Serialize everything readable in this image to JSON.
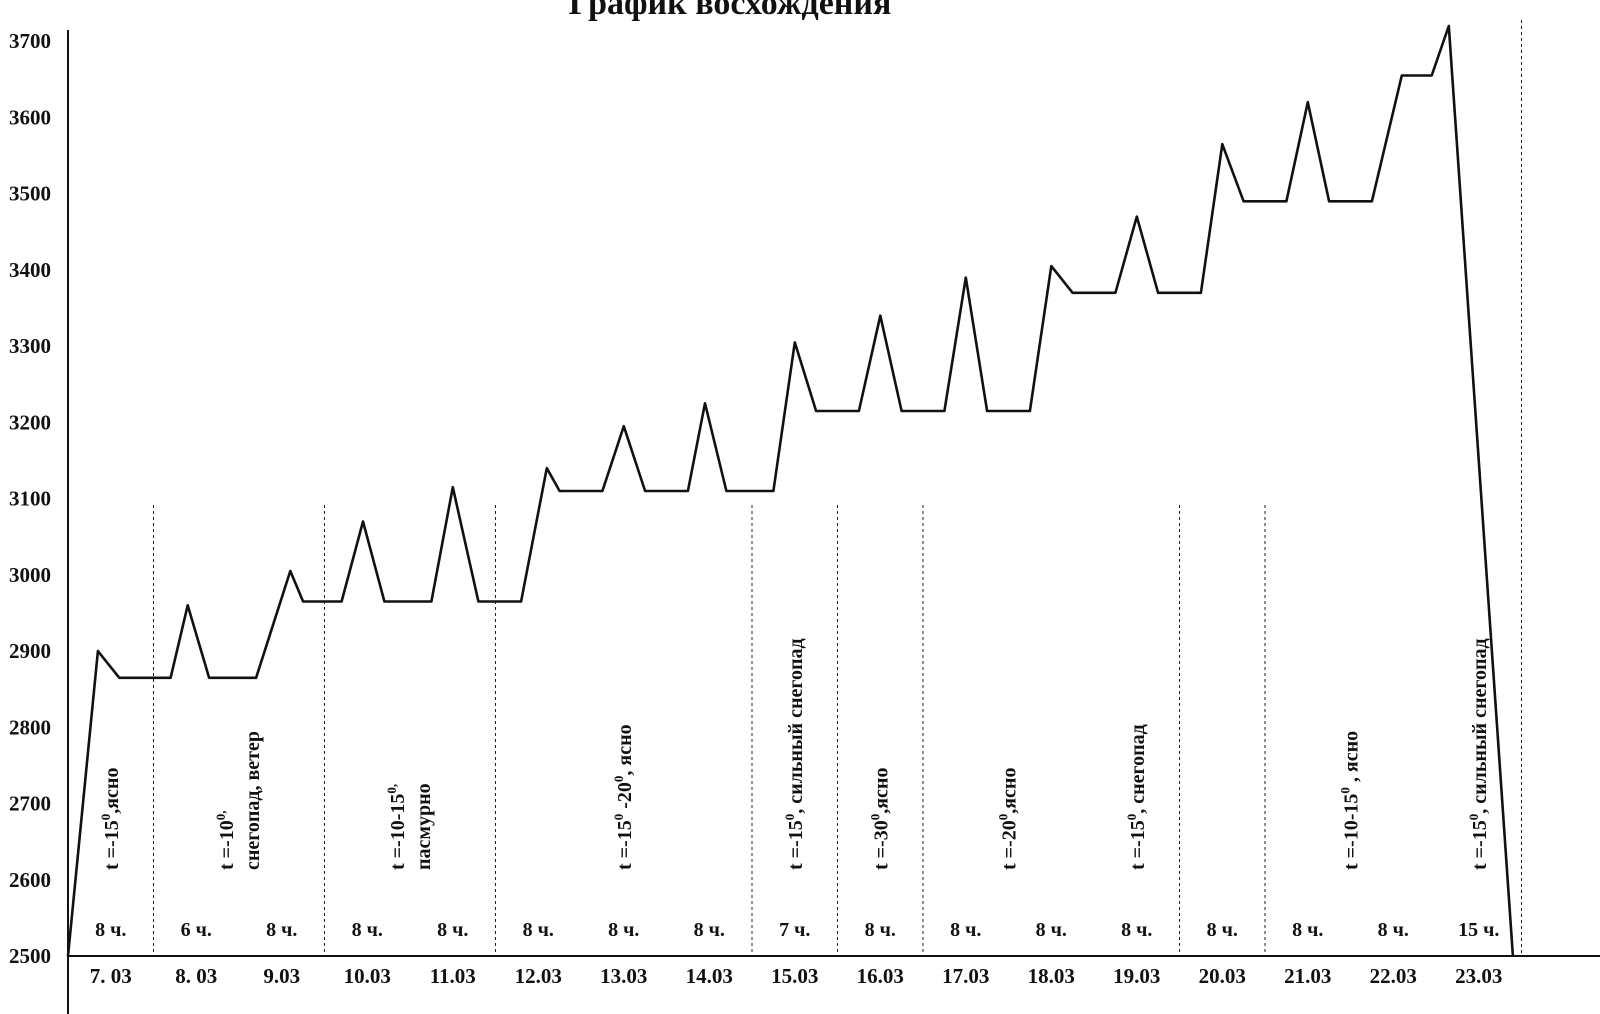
{
  "chart_data": {
    "type": "line",
    "title": "График восхождения",
    "ylim": [
      2500,
      3720
    ],
    "y_ticks": [
      2500,
      2600,
      2700,
      2800,
      2900,
      3000,
      3100,
      3200,
      3300,
      3400,
      3500,
      3600,
      3700
    ],
    "day_labels": [
      "7. 03",
      "8. 03",
      "9.03",
      "10.03",
      "11.03",
      "12.03",
      "13.03",
      "14.03",
      "15.03",
      "16.03",
      "17.03",
      "18.03",
      "19.03",
      "20.03",
      "21.03",
      "22.03",
      "23.03"
    ],
    "hours": [
      {
        "day": 0,
        "text": "8 ч."
      },
      {
        "day": 1,
        "text": "6 ч."
      },
      {
        "day": 2,
        "text": "8 ч."
      },
      {
        "day": 3,
        "text": "8 ч."
      },
      {
        "day": 4,
        "text": "8 ч."
      },
      {
        "day": 5,
        "text": "8 ч."
      },
      {
        "day": 6,
        "text": "8 ч."
      },
      {
        "day": 7,
        "text": "8 ч."
      },
      {
        "day": 8,
        "text": "7 ч."
      },
      {
        "day": 9,
        "text": "8 ч."
      },
      {
        "day": 10,
        "text": "8 ч."
      },
      {
        "day": 11,
        "text": "8 ч."
      },
      {
        "day": 12,
        "text": "8 ч."
      },
      {
        "day": 13,
        "text": "8 ч."
      },
      {
        "day": 14,
        "text": "8 ч."
      },
      {
        "day": 15,
        "text": "8 ч."
      },
      {
        "day": 16,
        "text": "15 ч."
      }
    ],
    "separators_after_day": [
      0,
      2,
      4,
      7,
      8,
      9,
      12,
      13,
      16
    ],
    "weather": [
      {
        "day": 0.5,
        "lines": [
          [
            {
              "t": "t =-15"
            },
            {
              "t": "0",
              "sup": true
            },
            {
              "t": ",ясно"
            }
          ]
        ]
      },
      {
        "day": 2.0,
        "lines": [
          [
            {
              "t": "t =-10"
            },
            {
              "t": "0,",
              "sup": true
            }
          ],
          [
            {
              "t": "снегопад, ветер"
            }
          ]
        ]
      },
      {
        "day": 4.0,
        "lines": [
          [
            {
              "t": "t =-10-15"
            },
            {
              "t": "0,",
              "sup": true
            }
          ],
          [
            {
              "t": "пасмурно"
            }
          ]
        ]
      },
      {
        "day": 6.5,
        "lines": [
          [
            {
              "t": "t =-15"
            },
            {
              "t": "0",
              "sup": true
            },
            {
              "t": " -20"
            },
            {
              "t": "0",
              "sup": true
            },
            {
              "t": ", ясно"
            }
          ]
        ]
      },
      {
        "day": 8.5,
        "lines": [
          [
            {
              "t": "t =-15"
            },
            {
              "t": "0",
              "sup": true
            },
            {
              "t": ", сильный снегопад"
            }
          ]
        ]
      },
      {
        "day": 9.5,
        "lines": [
          [
            {
              "t": "t =-30"
            },
            {
              "t": "0",
              "sup": true
            },
            {
              "t": ",ясно"
            }
          ]
        ]
      },
      {
        "day": 11.0,
        "lines": [
          [
            {
              "t": "t =-20"
            },
            {
              "t": "0",
              "sup": true
            },
            {
              "t": ",ясно"
            }
          ]
        ]
      },
      {
        "day": 12.5,
        "lines": [
          [
            {
              "t": "t =-15"
            },
            {
              "t": "0",
              "sup": true
            },
            {
              "t": ", снегопад"
            }
          ]
        ]
      },
      {
        "day": 15.0,
        "lines": [
          [
            {
              "t": "t =-10-15"
            },
            {
              "t": "0",
              "sup": true
            },
            {
              "t": " , ясно"
            }
          ]
        ]
      },
      {
        "day": 16.5,
        "lines": [
          [
            {
              "t": "t =-15"
            },
            {
              "t": "0",
              "sup": true
            },
            {
              "t": ", сильный снегопад"
            }
          ]
        ]
      }
    ],
    "series": [
      {
        "values": [
          [
            0.0,
            2500
          ],
          [
            0.35,
            2900
          ],
          [
            0.6,
            2865
          ],
          [
            1.2,
            2865
          ],
          [
            1.4,
            2960
          ],
          [
            1.65,
            2865
          ],
          [
            2.2,
            2865
          ],
          [
            2.6,
            3005
          ],
          [
            2.75,
            2965
          ],
          [
            3.2,
            2965
          ],
          [
            3.45,
            3070
          ],
          [
            3.7,
            2965
          ],
          [
            4.25,
            2965
          ],
          [
            4.5,
            3115
          ],
          [
            4.8,
            2965
          ],
          [
            5.3,
            2965
          ],
          [
            5.6,
            3140
          ],
          [
            5.75,
            3110
          ],
          [
            6.25,
            3110
          ],
          [
            6.5,
            3195
          ],
          [
            6.75,
            3110
          ],
          [
            7.25,
            3110
          ],
          [
            7.45,
            3225
          ],
          [
            7.7,
            3110
          ],
          [
            8.25,
            3110
          ],
          [
            8.5,
            3305
          ],
          [
            8.75,
            3215
          ],
          [
            9.25,
            3215
          ],
          [
            9.5,
            3340
          ],
          [
            9.75,
            3215
          ],
          [
            10.25,
            3215
          ],
          [
            10.5,
            3390
          ],
          [
            10.75,
            3215
          ],
          [
            11.25,
            3215
          ],
          [
            11.5,
            3405
          ],
          [
            11.75,
            3370
          ],
          [
            12.25,
            3370
          ],
          [
            12.5,
            3470
          ],
          [
            12.75,
            3370
          ],
          [
            13.25,
            3370
          ],
          [
            13.5,
            3565
          ],
          [
            13.75,
            3490
          ],
          [
            14.25,
            3490
          ],
          [
            14.5,
            3620
          ],
          [
            14.75,
            3490
          ],
          [
            15.25,
            3490
          ],
          [
            15.6,
            3655
          ],
          [
            15.95,
            3655
          ],
          [
            16.15,
            3720
          ],
          [
            16.9,
            2500
          ]
        ]
      }
    ]
  }
}
